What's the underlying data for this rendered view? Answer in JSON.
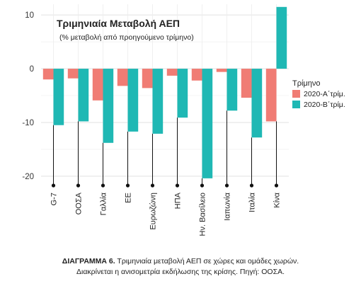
{
  "chart_data": {
    "type": "bar",
    "title": "Τριμηνιαία Μεταβολή ΑΕΠ",
    "subtitle": "(% μεταβολή από προηγούμενο τρίμηνο)",
    "categories": [
      "G-7",
      "ΟΟΣΑ",
      "Γαλλία",
      "ΕΕ",
      "Ευρωζώνη",
      "ΗΠΑ",
      "Ην. Βασίλειο",
      "Ιαπωνία",
      "Ιταλία",
      "Κίνα"
    ],
    "series": [
      {
        "name": "2020-Α΄τρίμ.",
        "color": "#f07c74",
        "values": [
          -2.0,
          -1.8,
          -5.9,
          -3.2,
          -3.6,
          -1.3,
          -2.2,
          -0.6,
          -5.4,
          -9.8
        ]
      },
      {
        "name": "2020-Β΄τρίμ.",
        "color": "#1fb8b4",
        "values": [
          -10.5,
          -9.8,
          -13.8,
          -11.7,
          -12.1,
          -9.1,
          -20.4,
          -7.8,
          -12.8,
          11.5
        ]
      }
    ],
    "legend_title": "Τρίμηνο",
    "legend_position": "right",
    "ylim": [
      -22,
      12
    ],
    "yticks": [
      -20,
      -10,
      0,
      10
    ],
    "grid": true,
    "xlabel": "",
    "ylabel": ""
  },
  "caption": {
    "label": "ΔΙΑΓΡΑΜΜΑ 6.",
    "line1": "Τριμηνιαία μεταβολή ΑΕΠ σε χώρες και ομάδες χωρών.",
    "line2": "Διακρίνεται η ανισομετρία εκδήλωσης της κρίσης. Πηγή: ΟΟΣΑ."
  }
}
